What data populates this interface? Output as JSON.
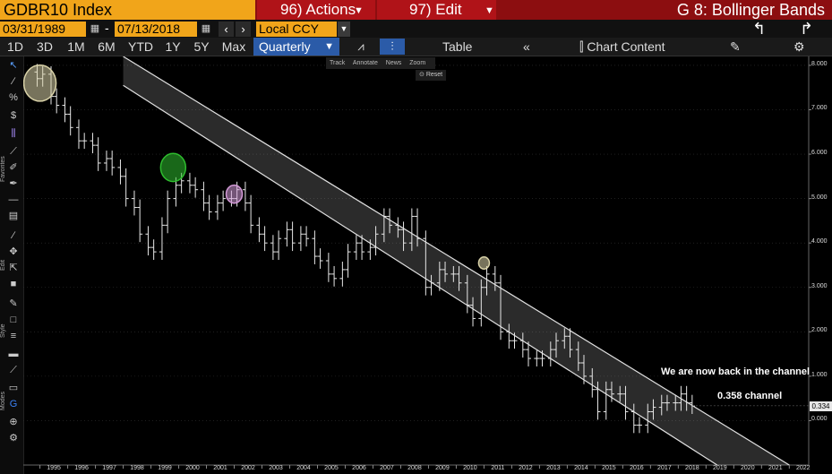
{
  "header": {
    "security": "GDBR10 Index",
    "actions_label": "96) Actions",
    "edit_label": "97) Edit",
    "function_title": "G 8: Bollinger Bands"
  },
  "range": {
    "start_date": "03/31/1989",
    "separator": "-",
    "end_date": "07/13/2018",
    "currency": "Local CCY"
  },
  "periods": [
    "1D",
    "3D",
    "1M",
    "6M",
    "YTD",
    "1Y",
    "5Y",
    "Max"
  ],
  "frequency": "Quarterly",
  "toolbar": {
    "table_label": "Table",
    "chart_content_label": "Chart Content"
  },
  "mini_tools": {
    "track": "Track",
    "annotate": "Annotate",
    "news": "News",
    "zoom": "Zoom",
    "reset": "Reset"
  },
  "sidebar_labels": {
    "favorites": "Favorites",
    "edit": "Edit",
    "style": "Style",
    "modes": "Modes"
  },
  "chart_data": {
    "type": "ohlc",
    "frequency": "quarterly",
    "y_ticks": [
      "8.000",
      "7.000",
      "6.000",
      "5.000",
      "4.000",
      "3.000",
      "2.000",
      "1.000",
      "0.000"
    ],
    "ylim": [
      -1.0,
      8.2
    ],
    "x_ticks": [
      "1995",
      "1996",
      "1997",
      "1998",
      "1999",
      "2000",
      "2001",
      "2002",
      "2003",
      "2004",
      "2005",
      "2006",
      "2007",
      "2008",
      "2009",
      "2010",
      "2011",
      "2012",
      "2013",
      "2014",
      "2015",
      "2016",
      "2017",
      "2018",
      "2019",
      "2020",
      "2021",
      "2022"
    ],
    "xlim": [
      1994.4,
      2022.7
    ],
    "last_price": "0.334",
    "channel": {
      "upper": [
        [
          1998.0,
          8.2
        ],
        [
          2022.0,
          -1.0
        ]
      ],
      "lower": [
        [
          1998.0,
          7.55
        ],
        [
          2019.4,
          -1.0
        ]
      ]
    },
    "series": [
      {
        "values": [
          [
            1994.9,
            7.7
          ],
          [
            1995.1,
            7.8
          ],
          [
            1995.4,
            7.3
          ],
          [
            1995.6,
            7.1
          ],
          [
            1995.9,
            6.9
          ],
          [
            1996.1,
            6.6
          ],
          [
            1996.4,
            6.3
          ],
          [
            1996.6,
            6.3
          ],
          [
            1996.9,
            6.2
          ],
          [
            1997.1,
            5.8
          ],
          [
            1997.4,
            5.9
          ],
          [
            1997.6,
            5.7
          ],
          [
            1997.9,
            5.5
          ],
          [
            1998.1,
            5.0
          ],
          [
            1998.4,
            4.8
          ],
          [
            1998.6,
            4.2
          ],
          [
            1998.9,
            3.9
          ],
          [
            1999.1,
            3.8
          ],
          [
            1999.4,
            4.4
          ],
          [
            1999.6,
            5.0
          ],
          [
            1999.9,
            5.3
          ],
          [
            2000.1,
            5.4
          ],
          [
            2000.4,
            5.3
          ],
          [
            2000.6,
            5.2
          ],
          [
            2000.9,
            4.9
          ],
          [
            2001.1,
            4.7
          ],
          [
            2001.4,
            4.9
          ],
          [
            2001.6,
            5.0
          ],
          [
            2001.9,
            5.0
          ],
          [
            2002.1,
            5.2
          ],
          [
            2002.4,
            4.9
          ],
          [
            2002.6,
            4.4
          ],
          [
            2002.9,
            4.2
          ],
          [
            2003.1,
            4.0
          ],
          [
            2003.4,
            3.8
          ],
          [
            2003.6,
            4.1
          ],
          [
            2003.9,
            4.3
          ],
          [
            2004.1,
            4.0
          ],
          [
            2004.4,
            4.2
          ],
          [
            2004.6,
            4.1
          ],
          [
            2004.9,
            3.7
          ],
          [
            2005.1,
            3.6
          ],
          [
            2005.4,
            3.3
          ],
          [
            2005.6,
            3.2
          ],
          [
            2005.9,
            3.4
          ],
          [
            2006.1,
            3.8
          ],
          [
            2006.4,
            4.0
          ],
          [
            2006.6,
            3.8
          ],
          [
            2006.9,
            3.9
          ],
          [
            2007.1,
            4.2
          ],
          [
            2007.4,
            4.6
          ],
          [
            2007.6,
            4.4
          ],
          [
            2007.9,
            4.3
          ],
          [
            2008.1,
            4.0
          ],
          [
            2008.4,
            4.6
          ],
          [
            2008.6,
            4.1
          ],
          [
            2008.9,
            3.0
          ],
          [
            2009.1,
            3.1
          ],
          [
            2009.4,
            3.4
          ],
          [
            2009.6,
            3.3
          ],
          [
            2009.9,
            3.3
          ],
          [
            2010.1,
            3.1
          ],
          [
            2010.4,
            2.6
          ],
          [
            2010.6,
            2.3
          ],
          [
            2010.9,
            3.0
          ],
          [
            2011.1,
            3.3
          ],
          [
            2011.4,
            3.1
          ],
          [
            2011.6,
            2.0
          ],
          [
            2011.9,
            1.8
          ],
          [
            2012.1,
            1.8
          ],
          [
            2012.4,
            1.6
          ],
          [
            2012.6,
            1.4
          ],
          [
            2012.9,
            1.4
          ],
          [
            2013.1,
            1.4
          ],
          [
            2013.4,
            1.6
          ],
          [
            2013.6,
            1.8
          ],
          [
            2013.9,
            1.9
          ],
          [
            2014.1,
            1.6
          ],
          [
            2014.4,
            1.3
          ],
          [
            2014.6,
            1.0
          ],
          [
            2014.9,
            0.7
          ],
          [
            2015.1,
            0.2
          ],
          [
            2015.4,
            0.7
          ],
          [
            2015.6,
            0.6
          ],
          [
            2015.9,
            0.6
          ],
          [
            2016.1,
            0.2
          ],
          [
            2016.4,
            -0.1
          ],
          [
            2016.6,
            -0.1
          ],
          [
            2016.9,
            0.2
          ],
          [
            2017.1,
            0.3
          ],
          [
            2017.4,
            0.4
          ],
          [
            2017.6,
            0.4
          ],
          [
            2017.9,
            0.4
          ],
          [
            2018.1,
            0.6
          ],
          [
            2018.3,
            0.4
          ],
          [
            2018.5,
            0.33
          ]
        ]
      }
    ],
    "annotations": [
      "We are now back in the channel",
      "0.358 channel"
    ],
    "highlights": [
      {
        "x": 1995.0,
        "y": 7.6,
        "color": "#d9d2a8"
      },
      {
        "x": 1999.8,
        "y": 5.7,
        "color": "#2ebd2e"
      },
      {
        "x": 2002.0,
        "y": 5.1,
        "color": "#d49ad8"
      },
      {
        "x": 2011.0,
        "y": 3.55,
        "color": "#d9d2a8"
      }
    ]
  }
}
